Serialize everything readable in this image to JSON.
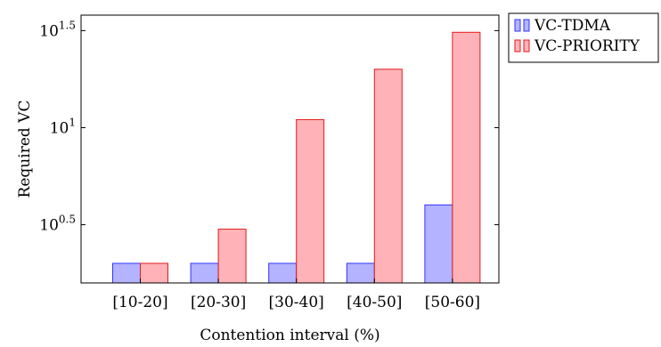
{
  "chart_data": {
    "type": "bar",
    "title": "",
    "xlabel": "Contention interval (%)",
    "ylabel": "Required VC",
    "categories": [
      "[10-20]",
      "[20-30]",
      "[30-40]",
      "[40-50]",
      "[50-60]"
    ],
    "series": [
      {
        "name": "VC-TDMA",
        "values": [
          2,
          2,
          2,
          2,
          4
        ],
        "fill": "#b3b3ff",
        "stroke": "#3333ff"
      },
      {
        "name": "VC-PRIORITY",
        "values": [
          2,
          3,
          11,
          20,
          31
        ],
        "fill": "#ffb3b8",
        "stroke": "#e31a1c"
      }
    ],
    "y_scale": "log10",
    "ylim": [
      1.585,
      38.0
    ],
    "y_ticks": [
      {
        "value": 3.1623,
        "base": "10",
        "exp": "0.5"
      },
      {
        "value": 10,
        "base": "10",
        "exp": "1"
      },
      {
        "value": 31.623,
        "base": "10",
        "exp": "1.5"
      }
    ],
    "legend_position": "outside-top-right",
    "grid": false
  }
}
